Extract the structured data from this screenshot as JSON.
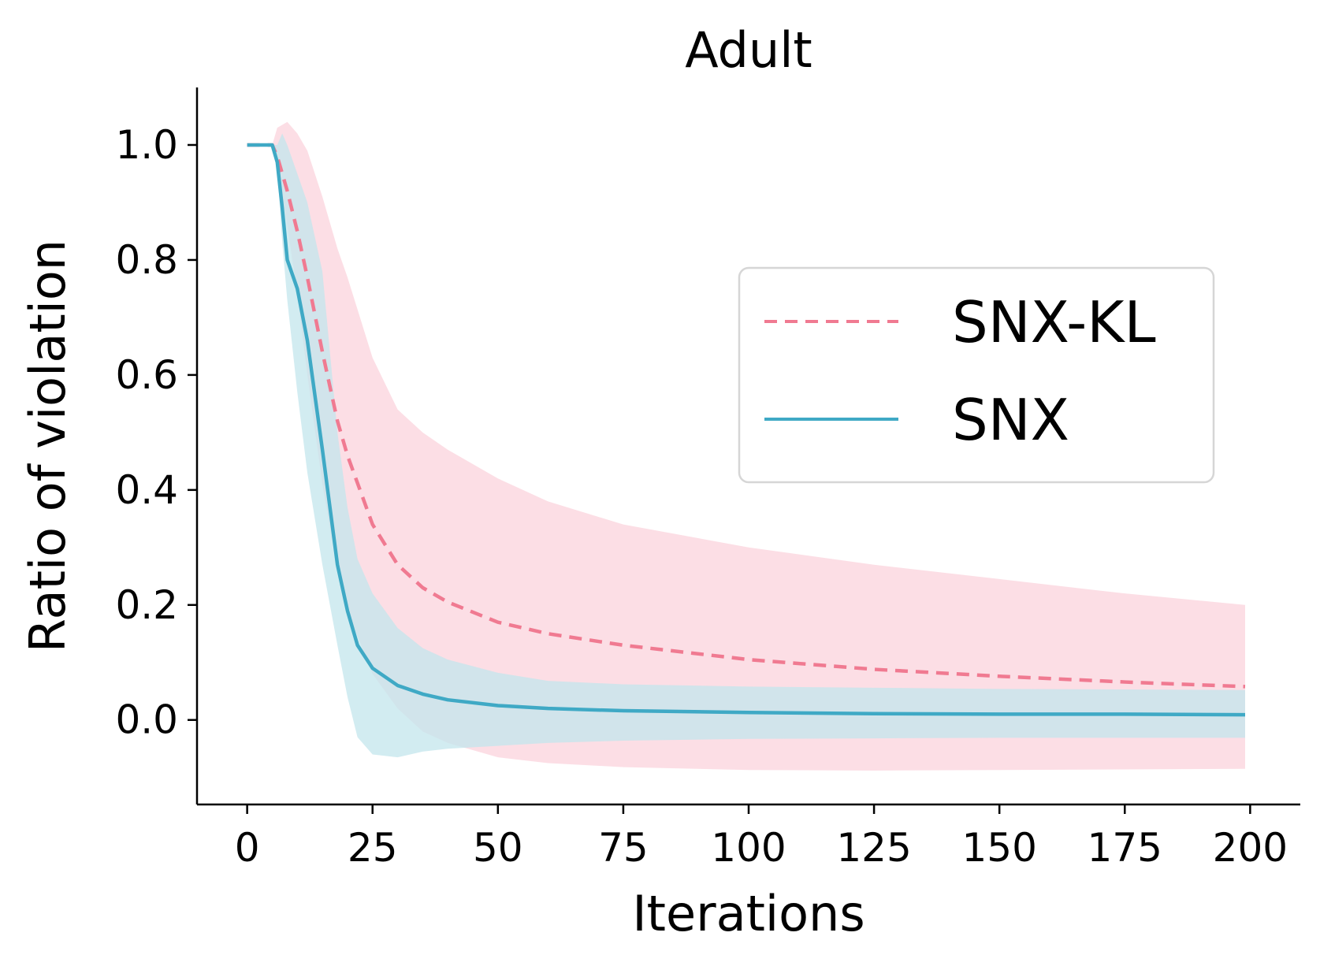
{
  "chart_data": {
    "type": "line",
    "title": "Adult",
    "xlabel": "Iterations",
    "ylabel": "Ratio of violation",
    "xlim": [
      -10,
      210
    ],
    "ylim": [
      -0.147,
      1.1
    ],
    "x_ticks": [
      0,
      25,
      50,
      75,
      100,
      125,
      150,
      175,
      200
    ],
    "y_ticks": [
      0.0,
      0.2,
      0.4,
      0.6,
      0.8,
      1.0
    ],
    "x_tick_labels": [
      "0",
      "25",
      "50",
      "75",
      "100",
      "125",
      "150",
      "175",
      "200"
    ],
    "y_tick_labels": [
      "0.0",
      "0.2",
      "0.4",
      "0.6",
      "0.8",
      "1.0"
    ],
    "grid": false,
    "legend_position": "center-right",
    "series": [
      {
        "name": "SNX-KL",
        "color": "#f07a91",
        "band_color": "#fbd3dc",
        "style": "dashed",
        "x": [
          0,
          5,
          6,
          8,
          10,
          12,
          15,
          18,
          20,
          25,
          30,
          35,
          40,
          50,
          60,
          75,
          100,
          125,
          150,
          175,
          199
        ],
        "y": [
          1.0,
          1.0,
          0.98,
          0.92,
          0.85,
          0.77,
          0.64,
          0.52,
          0.46,
          0.34,
          0.27,
          0.23,
          0.205,
          0.17,
          0.15,
          0.13,
          0.105,
          0.088,
          0.076,
          0.066,
          0.058
        ],
        "lower": [
          1.0,
          1.0,
          0.96,
          0.86,
          0.74,
          0.6,
          0.41,
          0.26,
          0.19,
          0.08,
          0.02,
          -0.02,
          -0.04,
          -0.065,
          -0.075,
          -0.082,
          -0.087,
          -0.088,
          -0.087,
          -0.086,
          -0.085
        ],
        "upper": [
          1.0,
          1.0,
          1.03,
          1.04,
          1.02,
          0.99,
          0.91,
          0.82,
          0.77,
          0.63,
          0.54,
          0.5,
          0.47,
          0.42,
          0.38,
          0.34,
          0.3,
          0.27,
          0.245,
          0.22,
          0.2
        ]
      },
      {
        "name": "SNX",
        "color": "#3fa9c5",
        "band_color": "#c3e5ec",
        "style": "solid",
        "x": [
          0,
          5,
          6,
          7,
          8,
          10,
          12,
          15,
          18,
          20,
          22,
          25,
          30,
          35,
          40,
          50,
          60,
          75,
          100,
          125,
          150,
          175,
          199
        ],
        "y": [
          1.0,
          1.0,
          0.97,
          0.89,
          0.8,
          0.75,
          0.66,
          0.47,
          0.27,
          0.19,
          0.13,
          0.09,
          0.06,
          0.045,
          0.035,
          0.025,
          0.02,
          0.016,
          0.013,
          0.011,
          0.01,
          0.01,
          0.009
        ],
        "lower": [
          1.0,
          1.0,
          0.96,
          0.83,
          0.73,
          0.57,
          0.43,
          0.27,
          0.13,
          0.04,
          -0.03,
          -0.06,
          -0.065,
          -0.055,
          -0.05,
          -0.045,
          -0.04,
          -0.036,
          -0.033,
          -0.032,
          -0.031,
          -0.031,
          -0.031
        ],
        "upper": [
          1.0,
          1.0,
          1.0,
          1.02,
          1.0,
          0.95,
          0.9,
          0.78,
          0.5,
          0.37,
          0.28,
          0.22,
          0.16,
          0.125,
          0.105,
          0.082,
          0.068,
          0.062,
          0.058,
          0.056,
          0.054,
          0.053,
          0.052
        ]
      }
    ]
  }
}
